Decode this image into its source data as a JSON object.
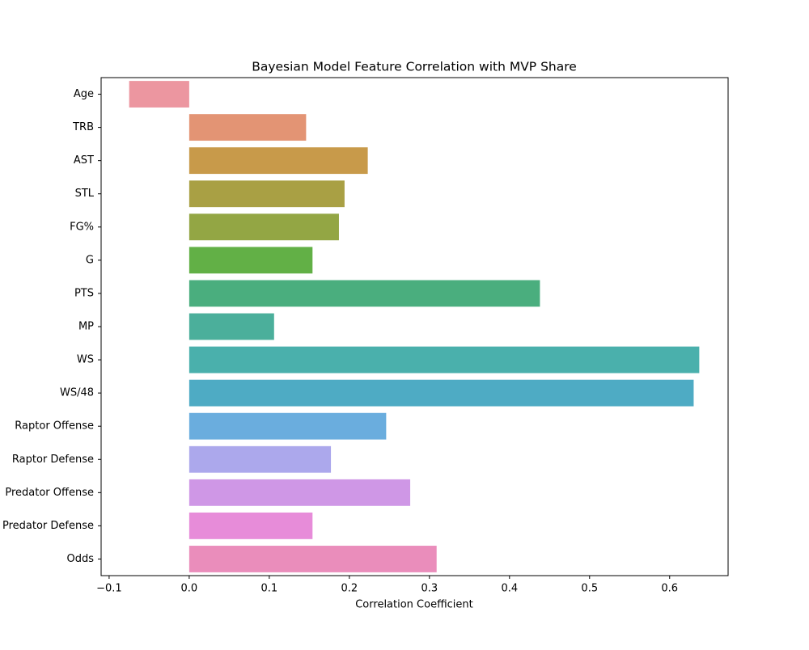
{
  "chart_data": {
    "type": "barh",
    "title": "Bayesian Model Feature Correlation with MVP Share",
    "xlabel": "Correlation Coefficient",
    "categories": [
      "Age",
      "TRB",
      "AST",
      "STL",
      "FG%",
      "G",
      "PTS",
      "MP",
      "WS",
      "WS/48",
      "Raptor Offense",
      "Raptor Defense",
      "Predator Offense",
      "Predator Defense",
      "Odds"
    ],
    "values": [
      -0.075,
      0.146,
      0.223,
      0.194,
      0.187,
      0.154,
      0.438,
      0.106,
      0.637,
      0.63,
      0.246,
      0.177,
      0.276,
      0.154,
      0.309
    ],
    "colors": [
      "#ec96a0",
      "#e39474",
      "#c89a4a",
      "#a9a044",
      "#93a644",
      "#62b046",
      "#4aae7e",
      "#4baf9b",
      "#4ab0ac",
      "#4eabc4",
      "#6aadde",
      "#aca8ec",
      "#cf97e6",
      "#e78cd9",
      "#ea8dbb"
    ],
    "xlim": [
      -0.11,
      0.673
    ],
    "xticks": [
      {
        "value": -0.1,
        "label": "−0.1"
      },
      {
        "value": 0,
        "label": "0.0"
      },
      0.1,
      0.2,
      0.3,
      0.4,
      0.5,
      0.6
    ],
    "grid": false
  }
}
